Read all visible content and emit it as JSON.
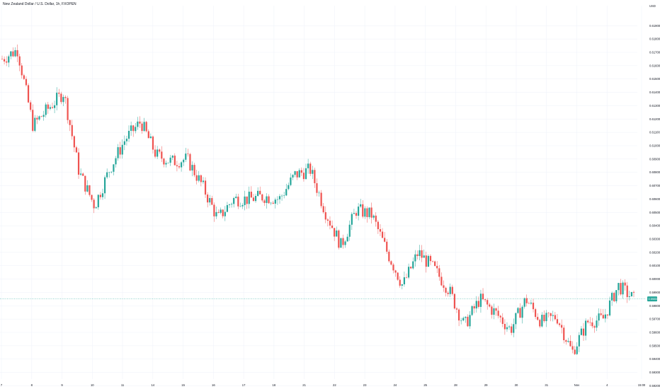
{
  "title": "New Zealand Dollar / U.S. Dollar, 1h, FXOPEN",
  "currency": "USD",
  "colors": {
    "up": "#26a69a",
    "down": "#ef5350",
    "grid": "#f0f3fa",
    "last_price_line": "#26a69a",
    "axis_text": "#131722"
  },
  "chart_data": {
    "type": "candlestick",
    "title": "New Zealand Dollar / U.S. Dollar, 1h, FXOPEN",
    "y_unit": "USD",
    "ylim": [
      0.5925,
      0.6205
    ],
    "y_ticks": [
      "0.61900",
      "0.61800",
      "0.61700",
      "0.61600",
      "0.61500",
      "0.61400",
      "0.61300",
      "0.61200",
      "0.61100",
      "0.61000",
      "0.60900",
      "0.60800",
      "0.60700",
      "0.60600",
      "0.60500",
      "0.60400",
      "0.60300",
      "0.60200",
      "0.60100",
      "0.60000",
      "0.59900",
      "0.59800",
      "0.59700",
      "0.59600",
      "0.59500",
      "0.59400",
      "0.59300",
      "0.59200"
    ],
    "x_ticks": [
      "7",
      "8",
      "9",
      "10",
      "11",
      "14",
      "15",
      "16",
      "17",
      "18",
      "21",
      "22",
      "23",
      "24",
      "25",
      "28",
      "29",
      "30",
      "31",
      "Nov",
      "4",
      "15:00"
    ],
    "last_price": "0.59851",
    "grid": true,
    "approx_close_path": [
      {
        "x": "7",
        "y": 0.6165
      },
      {
        "x": "7",
        "y": 0.6172
      },
      {
        "x": "8",
        "y": 0.6115
      },
      {
        "x": "8",
        "y": 0.6128
      },
      {
        "x": "9",
        "y": 0.614
      },
      {
        "x": "9",
        "y": 0.608
      },
      {
        "x": "10",
        "y": 0.6055
      },
      {
        "x": "10",
        "y": 0.6083
      },
      {
        "x": "11",
        "y": 0.6105
      },
      {
        "x": "11",
        "y": 0.6118
      },
      {
        "x": "14",
        "y": 0.6093
      },
      {
        "x": "14",
        "y": 0.6088
      },
      {
        "x": "15",
        "y": 0.609
      },
      {
        "x": "15",
        "y": 0.607
      },
      {
        "x": "16",
        "y": 0.6045
      },
      {
        "x": "16",
        "y": 0.606
      },
      {
        "x": "17",
        "y": 0.606
      },
      {
        "x": "17",
        "y": 0.6062
      },
      {
        "x": "18",
        "y": 0.606
      },
      {
        "x": "18",
        "y": 0.6078
      },
      {
        "x": "21",
        "y": 0.6082
      },
      {
        "x": "21",
        "y": 0.605
      },
      {
        "x": "22",
        "y": 0.6025
      },
      {
        "x": "22",
        "y": 0.6052
      },
      {
        "x": "23",
        "y": 0.6048
      },
      {
        "x": "23",
        "y": 0.602
      },
      {
        "x": "24",
        "y": 0.5995
      },
      {
        "x": "24",
        "y": 0.602
      },
      {
        "x": "25",
        "y": 0.6008
      },
      {
        "x": "25",
        "y": 0.5992
      },
      {
        "x": "28",
        "y": 0.5965
      },
      {
        "x": "28",
        "y": 0.5985
      },
      {
        "x": "29",
        "y": 0.5975
      },
      {
        "x": "29",
        "y": 0.5962
      },
      {
        "x": "30",
        "y": 0.5985
      },
      {
        "x": "30",
        "y": 0.5968
      },
      {
        "x": "31",
        "y": 0.5972
      },
      {
        "x": "31",
        "y": 0.5945
      },
      {
        "x": "Nov",
        "y": 0.5968
      },
      {
        "x": "Nov",
        "y": 0.597
      },
      {
        "x": "4",
        "y": 0.5995
      },
      {
        "x": "4",
        "y": 0.5985
      }
    ]
  }
}
